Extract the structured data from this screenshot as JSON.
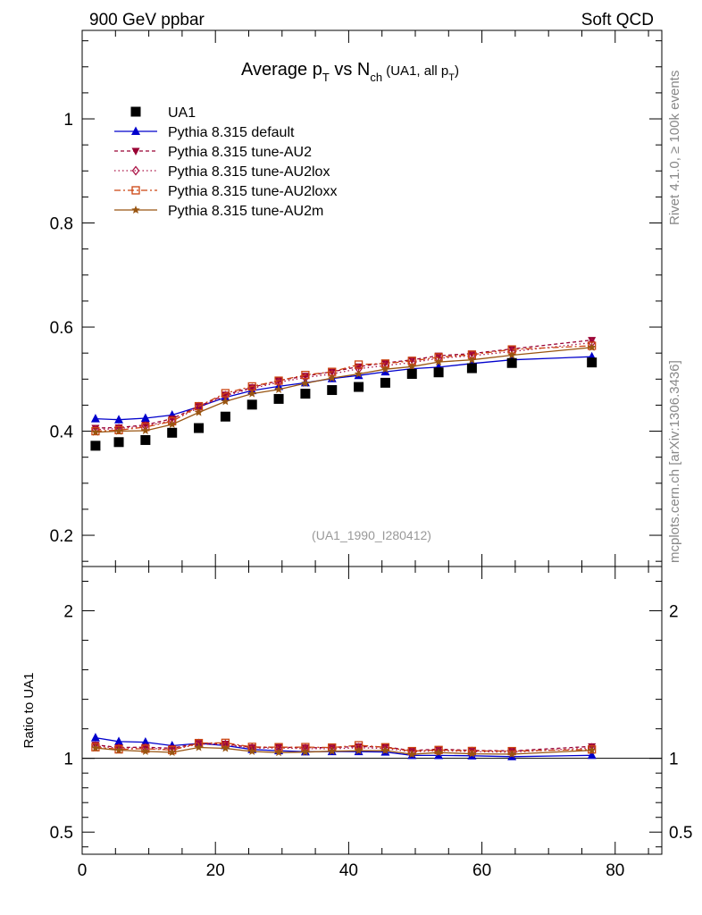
{
  "header": {
    "left": "900 GeV ppbar",
    "right": "Soft QCD"
  },
  "side": {
    "rivet": "Rivet 4.1.0, ≥ 100k events",
    "mcplots": "mcplots.cern.ch [arXiv:1306.3436]"
  },
  "chart_data": {
    "type": "scatter",
    "title": {
      "prefix": "Average p",
      "sub1": "T",
      "mid": " vs N",
      "sub2": "ch",
      "paren_open": " (UA1, all p",
      "sub3": "T",
      "paren_close": ")"
    },
    "analysis_tag": "(UA1_1990_I280412)",
    "xlim": [
      0,
      87
    ],
    "main_ylim": [
      0.14,
      1.17
    ],
    "ratio_ylim": [
      0.35,
      2.3
    ],
    "x_ticks": [
      0,
      20,
      40,
      60,
      80
    ],
    "x_tick_labels": [
      "0",
      "20",
      "40",
      "60",
      "80"
    ],
    "main_y_ticks": [
      0.2,
      0.4,
      0.6,
      0.8,
      1.0
    ],
    "main_y_tick_labels": [
      "0.2",
      "0.4",
      "0.6",
      "0.8",
      "1"
    ],
    "ratio_y_ticks": [
      0.5,
      1,
      2
    ],
    "ratio_y_tick_labels": [
      "0.5",
      "1",
      "2"
    ],
    "ratio_ylabel": "Ratio to UA1",
    "x": [
      2,
      5.5,
      9.5,
      13.5,
      17.5,
      21.5,
      25.5,
      29.5,
      33.5,
      37.5,
      41.5,
      45.5,
      49.5,
      53.5,
      58.5,
      64.5,
      76.5
    ],
    "data": {
      "name": "UA1",
      "values": [
        0.372,
        0.379,
        0.383,
        0.397,
        0.406,
        0.428,
        0.451,
        0.462,
        0.472,
        0.479,
        0.485,
        0.493,
        0.51,
        0.513,
        0.521,
        0.531,
        0.532
      ]
    },
    "series": [
      {
        "name": "Pythia 8.315 default",
        "color": "#0000cc",
        "dash": "",
        "marker": "triangle",
        "values": [
          0.424,
          0.422,
          0.425,
          0.431,
          0.447,
          0.465,
          0.478,
          0.486,
          0.493,
          0.501,
          0.507,
          0.514,
          0.52,
          0.523,
          0.53,
          0.537,
          0.543
        ]
      },
      {
        "name": "Pythia 8.315 tune-AU2",
        "color": "#990033",
        "dash": "4,3",
        "marker": "triangle-down",
        "values": [
          0.406,
          0.407,
          0.412,
          0.424,
          0.448,
          0.47,
          0.484,
          0.497,
          0.506,
          0.514,
          0.524,
          0.531,
          0.537,
          0.545,
          0.549,
          0.558,
          0.575
        ]
      },
      {
        "name": "Pythia 8.315 tune-AU2lox",
        "color": "#aa1144",
        "dash": "1.5,3",
        "marker": "diamond",
        "values": [
          0.403,
          0.405,
          0.41,
          0.42,
          0.445,
          0.468,
          0.482,
          0.494,
          0.503,
          0.51,
          0.52,
          0.526,
          0.532,
          0.54,
          0.545,
          0.553,
          0.57
        ]
      },
      {
        "name": "Pythia 8.315 tune-AU2loxx",
        "color": "#cc4411",
        "dash": "7,3,2,3",
        "marker": "square",
        "values": [
          0.4,
          0.402,
          0.408,
          0.419,
          0.448,
          0.473,
          0.486,
          0.497,
          0.508,
          0.514,
          0.528,
          0.53,
          0.535,
          0.542,
          0.547,
          0.557,
          0.564
        ]
      },
      {
        "name": "Pythia 8.315 tune-AU2m",
        "color": "#995511",
        "dash": "",
        "marker": "star",
        "values": [
          0.398,
          0.4,
          0.401,
          0.413,
          0.436,
          0.457,
          0.472,
          0.48,
          0.492,
          0.502,
          0.51,
          0.519,
          0.524,
          0.533,
          0.537,
          0.546,
          0.561
        ]
      }
    ]
  }
}
